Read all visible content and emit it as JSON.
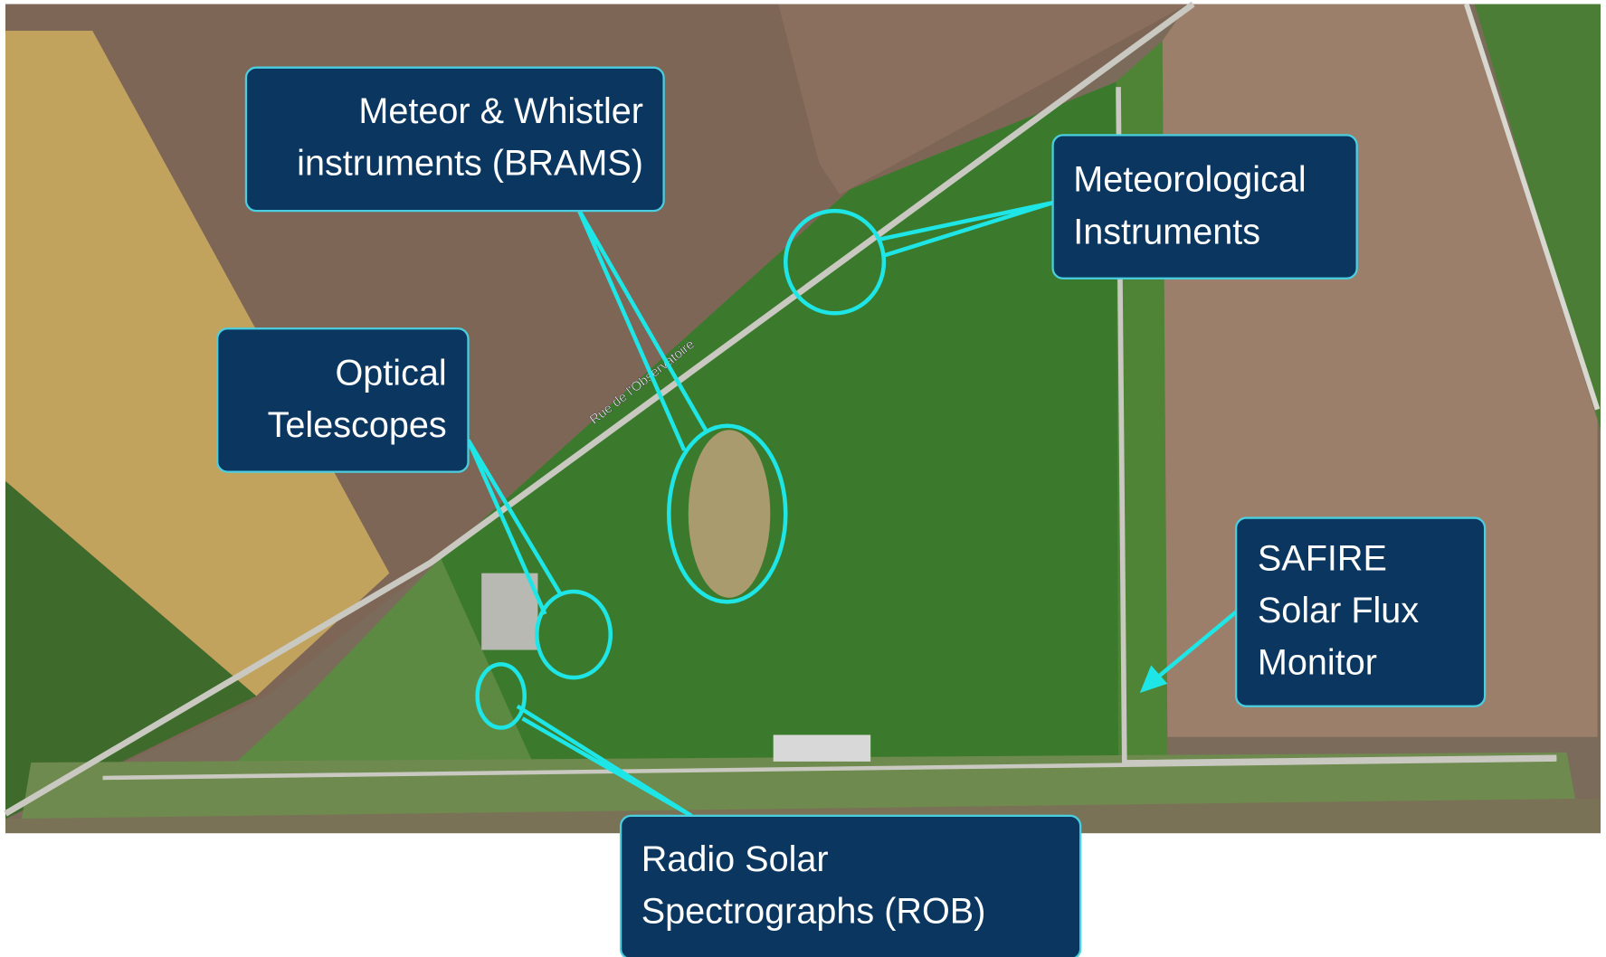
{
  "labels": [
    {
      "lines": [
        "Meteor & Whistler",
        "instruments (BRAMS)"
      ]
    },
    {
      "lines": [
        "Meteorological",
        "Instruments"
      ]
    },
    {
      "lines": [
        "Optical",
        "Telescopes"
      ]
    },
    {
      "lines": [
        "SAFIRE",
        "Solar Flux",
        "Monitor"
      ]
    },
    {
      "lines": [
        "Radio Solar",
        "Spectrographs (ROB)"
      ]
    }
  ],
  "map": {
    "street": "Rue de l'Observatoire"
  }
}
